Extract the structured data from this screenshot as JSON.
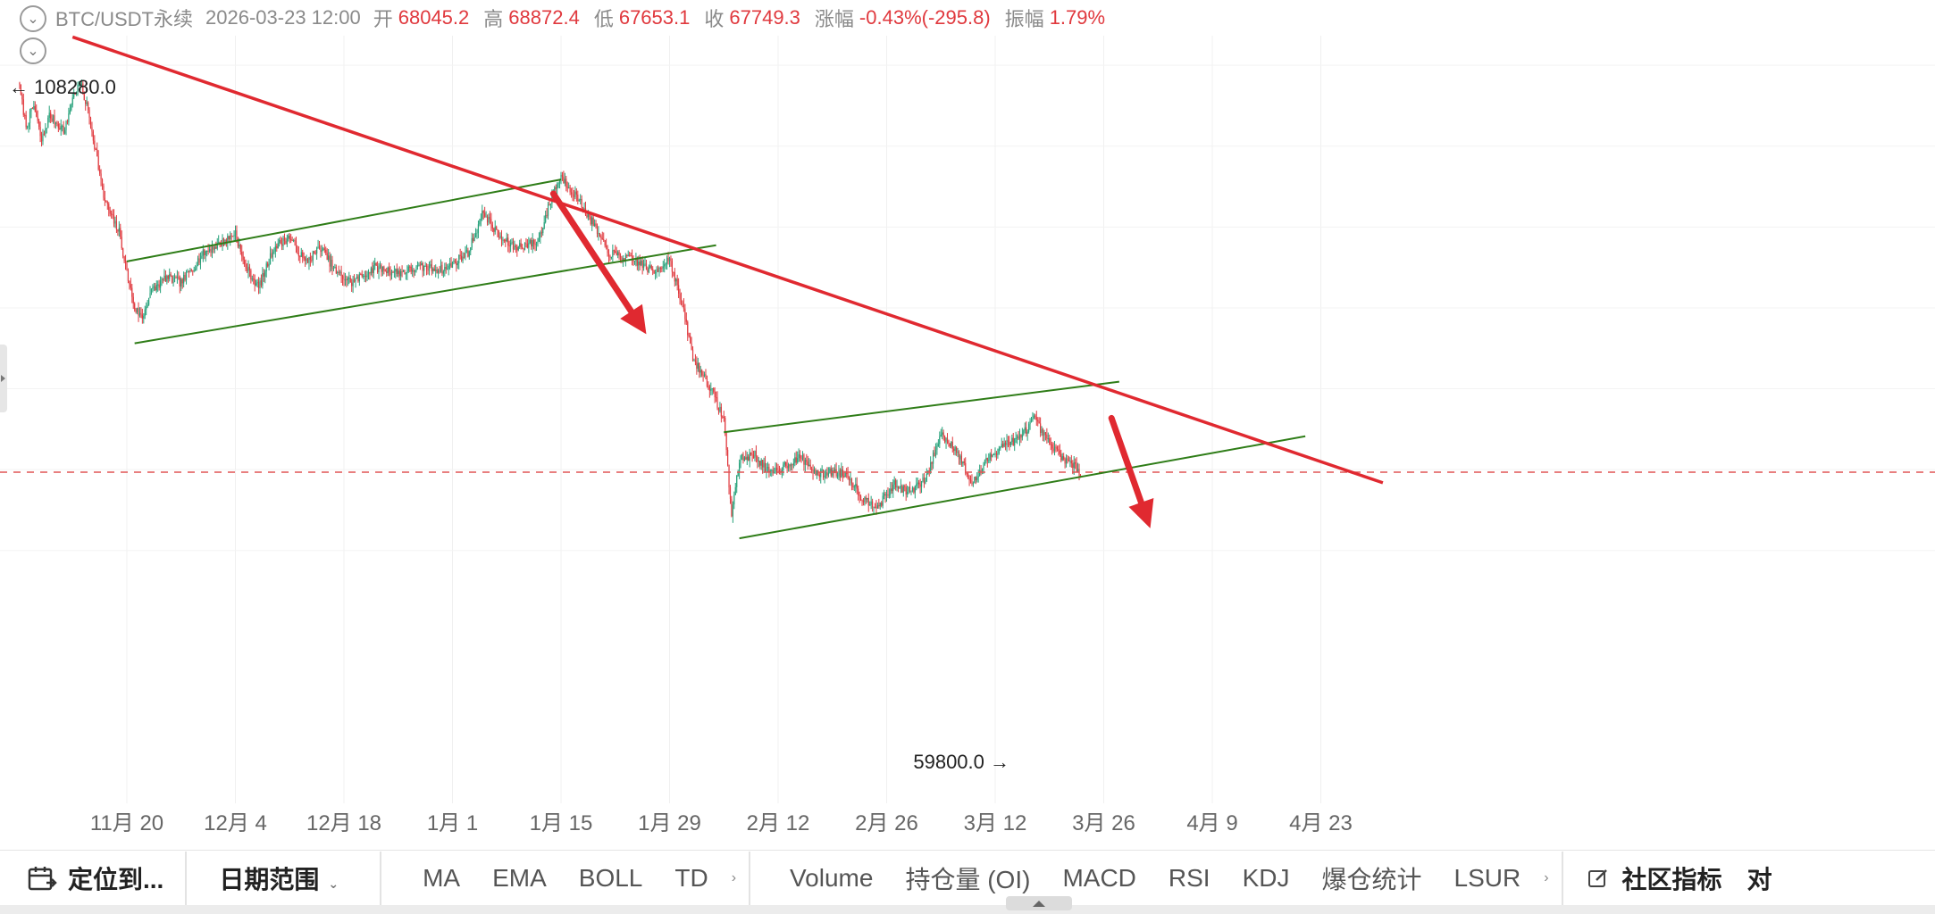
{
  "header": {
    "symbol": "BTC/USDT永续",
    "datetime": "2026-03-23 12:00",
    "open_label": "开",
    "open": "68045.2",
    "high_label": "高",
    "high": "68872.4",
    "low_label": "低",
    "low": "67653.1",
    "close_label": "收",
    "close": "67749.3",
    "change_label": "涨幅",
    "change": "-0.43%(-295.8)",
    "amplitude_label": "振幅",
    "amplitude": "1.79%"
  },
  "chart_data": {
    "type": "candlestick",
    "xticks": [
      "11月 20",
      "12月 4",
      "12月 18",
      "1月 1",
      "1月 15",
      "1月 29",
      "2月 12",
      "2月 26",
      "3月 12",
      "3月 26",
      "4月 9",
      "4月 23"
    ],
    "max_marker": "108280.0",
    "min_marker": "59800.0",
    "current_price": 67749.3,
    "colors": {
      "up": "#26a17a",
      "down": "#e0393e",
      "trendline": "#e02930",
      "channel": "#2f7d18",
      "arrow": "#e02930",
      "price_line": "#e05555"
    },
    "anchors": [
      [
        "2025-11-06",
        106500
      ],
      [
        "2025-11-07",
        102000
      ],
      [
        "2025-11-08",
        104000
      ],
      [
        "2025-11-09",
        100500
      ],
      [
        "2025-11-10",
        103000
      ],
      [
        "2025-11-12",
        101500
      ],
      [
        "2025-11-13",
        104800
      ],
      [
        "2025-11-14",
        106200
      ],
      [
        "2025-11-15",
        103500
      ],
      [
        "2025-11-16",
        99500
      ],
      [
        "2025-11-17",
        95000
      ],
      [
        "2025-11-18",
        93000
      ],
      [
        "2025-11-19",
        91500
      ],
      [
        "2025-11-20",
        87500
      ],
      [
        "2025-11-21",
        84000
      ],
      [
        "2025-11-22",
        83000
      ],
      [
        "2025-11-23",
        85500
      ],
      [
        "2025-11-25",
        87000
      ],
      [
        "2025-11-27",
        86500
      ],
      [
        "2025-11-30",
        89500
      ],
      [
        "2025-12-03",
        90800
      ],
      [
        "2025-12-04",
        91500
      ],
      [
        "2025-12-05",
        88500
      ],
      [
        "2025-12-07",
        86000
      ],
      [
        "2025-12-09",
        90000
      ],
      [
        "2025-12-11",
        91000
      ],
      [
        "2025-12-13",
        88500
      ],
      [
        "2025-12-15",
        90000
      ],
      [
        "2025-12-17",
        87500
      ],
      [
        "2025-12-19",
        86500
      ],
      [
        "2025-12-22",
        88000
      ],
      [
        "2025-12-25",
        87500
      ],
      [
        "2025-12-28",
        88000
      ],
      [
        "2025-12-31",
        87800
      ],
      [
        "2026-01-03",
        89500
      ],
      [
        "2026-01-05",
        93500
      ],
      [
        "2026-01-07",
        91000
      ],
      [
        "2026-01-09",
        90000
      ],
      [
        "2026-01-12",
        90500
      ],
      [
        "2026-01-14",
        95500
      ],
      [
        "2026-01-15",
        97000
      ],
      [
        "2026-01-17",
        95000
      ],
      [
        "2026-01-19",
        92500
      ],
      [
        "2026-01-21",
        89500
      ],
      [
        "2026-01-23",
        89000
      ],
      [
        "2026-01-25",
        88500
      ],
      [
        "2026-01-27",
        87500
      ],
      [
        "2026-01-29",
        89000
      ],
      [
        "2026-01-30",
        86000
      ],
      [
        "2026-01-31",
        83000
      ],
      [
        "2026-02-01",
        79000
      ],
      [
        "2026-02-03",
        76500
      ],
      [
        "2026-02-05",
        73000
      ],
      [
        "2026-02-06",
        63500
      ],
      [
        "2026-02-07",
        69000
      ],
      [
        "2026-02-09",
        69500
      ],
      [
        "2026-02-11",
        67500
      ],
      [
        "2026-02-13",
        68500
      ],
      [
        "2026-02-15",
        69200
      ],
      [
        "2026-02-17",
        67500
      ],
      [
        "2026-02-19",
        67800
      ],
      [
        "2026-02-21",
        67500
      ],
      [
        "2026-02-23",
        65000
      ],
      [
        "2026-02-25",
        64500
      ],
      [
        "2026-02-27",
        66500
      ],
      [
        "2026-03-01",
        65800
      ],
      [
        "2026-03-03",
        67000
      ],
      [
        "2026-03-05",
        71500
      ],
      [
        "2026-03-07",
        70000
      ],
      [
        "2026-03-09",
        66500
      ],
      [
        "2026-03-11",
        69000
      ],
      [
        "2026-03-13",
        70500
      ],
      [
        "2026-03-15",
        71000
      ],
      [
        "2026-03-17",
        73000
      ],
      [
        "2026-03-19",
        70500
      ],
      [
        "2026-03-21",
        69000
      ],
      [
        "2026-03-23",
        67749.3
      ]
    ],
    "channels": [
      {
        "from": [
          "2025-11-20",
          88600
        ],
        "to": [
          "2026-01-15",
          96700
        ]
      },
      {
        "from": [
          "2025-11-21",
          80500
        ],
        "to": [
          "2026-02-04",
          90200
        ]
      },
      {
        "from": [
          "2026-02-05",
          71700
        ],
        "to": [
          "2026-03-28",
          76700
        ]
      },
      {
        "from": [
          "2026-02-07",
          61200
        ],
        "to": [
          "2026-04-21",
          71300
        ]
      }
    ],
    "trendline": {
      "from": [
        "2025-11-13",
        110800
      ],
      "to": [
        "2026-05-01",
        66700
      ]
    },
    "arrows": [
      {
        "from": [
          "2026-01-14",
          95300
        ],
        "to": [
          "2026-01-26",
          81400
        ]
      },
      {
        "from": [
          "2026-03-27",
          73100
        ],
        "to": [
          "2026-04-01",
          62200
        ]
      }
    ]
  },
  "toolbar": {
    "locate": "定位到...",
    "date_range": "日期范围",
    "indicators": [
      "MA",
      "EMA",
      "BOLL",
      "TD"
    ],
    "sub_indicators": [
      "Volume",
      "持仓量 (OI)",
      "MACD",
      "RSI",
      "KDJ",
      "爆仓统计",
      "LSUR"
    ],
    "community": "社区指标",
    "trailing": "对"
  }
}
